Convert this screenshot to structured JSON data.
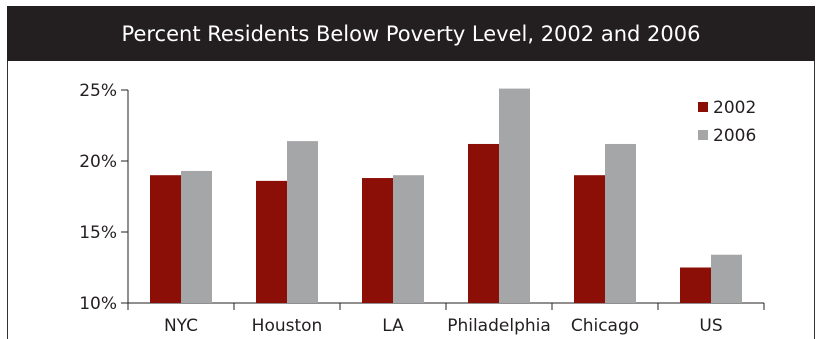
{
  "chart_data": {
    "type": "bar",
    "title": "Percent Residents Below Poverty Level, 2002 and 2006",
    "categories": [
      "NYC",
      "Houston",
      "LA",
      "Philadelphia",
      "Chicago",
      "US"
    ],
    "series": [
      {
        "name": "2002",
        "color": "#8b0f06",
        "values": [
          19.0,
          18.6,
          18.8,
          21.2,
          19.0,
          12.5
        ]
      },
      {
        "name": "2006",
        "color": "#a5a6a8",
        "values": [
          19.3,
          21.4,
          19.0,
          25.1,
          21.2,
          13.4
        ]
      }
    ],
    "ylim": [
      10,
      25
    ],
    "yticks": [
      10,
      15,
      20,
      25
    ],
    "ytick_labels": [
      "10%",
      "15%",
      "20%",
      "25%"
    ],
    "xlabel": "",
    "ylabel": "",
    "legend_position": "top-right",
    "grid": false
  }
}
